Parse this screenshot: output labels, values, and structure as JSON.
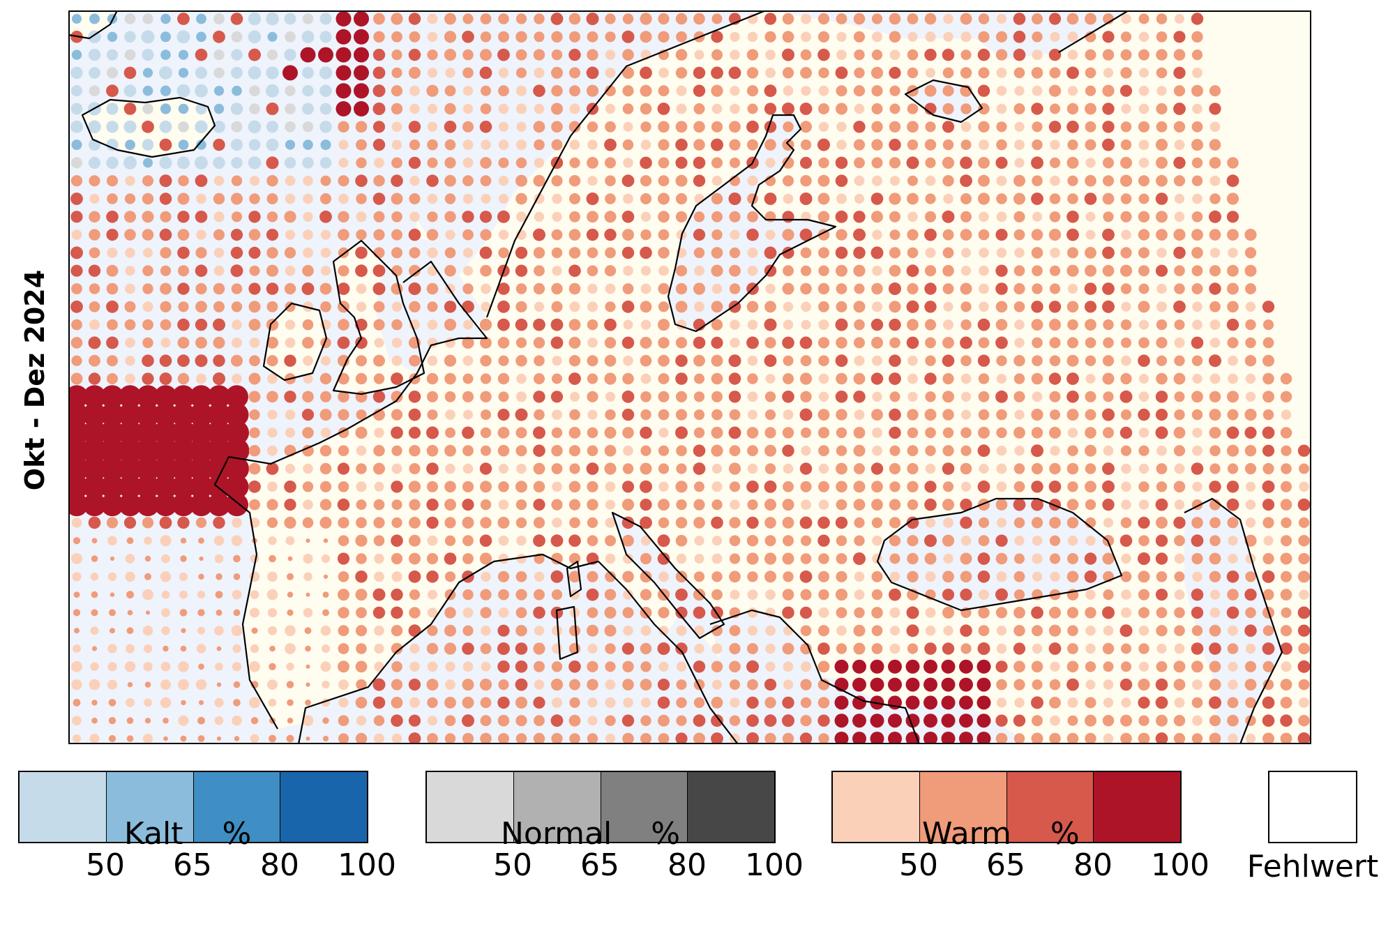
{
  "period_label": "Okt - Dez 2024",
  "legend": {
    "groups": [
      {
        "name": "Kalt",
        "unit": "%",
        "ticks": [
          "50",
          "65",
          "80",
          "100"
        ],
        "colors": [
          "#c6dbea",
          "#8bbcdc",
          "#3f8fc4",
          "#1965ab"
        ]
      },
      {
        "name": "Normal",
        "unit": "%",
        "ticks": [
          "50",
          "65",
          "80",
          "100"
        ],
        "colors": [
          "#d9d9d9",
          "#b1b1b1",
          "#808080",
          "#474747"
        ]
      },
      {
        "name": "Warm",
        "unit": "%",
        "ticks": [
          "50",
          "65",
          "80",
          "100"
        ],
        "colors": [
          "#fbd0b9",
          "#f09b7a",
          "#d6594c",
          "#ae1428"
        ]
      }
    ],
    "missing_label": "Fehlwert",
    "missing_color": "#ffffff"
  },
  "colors": {
    "sea_background": "#eef3fc",
    "land_background": "#fffcf0",
    "coastline": "#000000"
  }
}
